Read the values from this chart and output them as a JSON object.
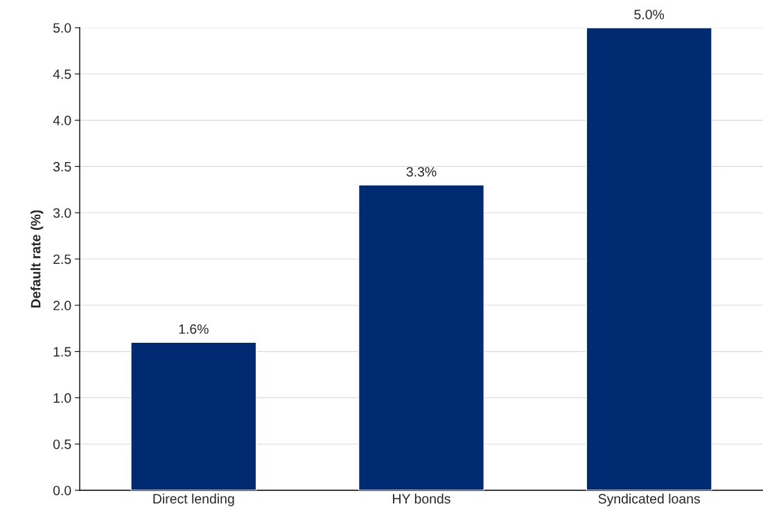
{
  "chart_data": {
    "type": "bar",
    "ylabel": "Default rate (%)",
    "categories": [
      "Direct lending",
      "HY bonds",
      "Syndicated loans"
    ],
    "values": [
      1.6,
      3.3,
      5.0
    ],
    "color": "#002b73",
    "value_labels": [
      "1.6%",
      "3.3%",
      "5.0%"
    ],
    "ylim": [
      0,
      5
    ],
    "yticks": [
      {
        "value": 0,
        "label": "0.0"
      },
      {
        "value": 0.5,
        "label": "0.5"
      },
      {
        "value": 1,
        "label": "1.0"
      },
      {
        "value": 1.5,
        "label": "1.5"
      },
      {
        "value": 2,
        "label": "2.0"
      },
      {
        "value": 2.5,
        "label": "2.5"
      },
      {
        "value": 3,
        "label": "3.0"
      },
      {
        "value": 3.5,
        "label": "3.5"
      },
      {
        "value": 4,
        "label": "4.0"
      },
      {
        "value": 4.5,
        "label": "4.5"
      },
      {
        "value": 5,
        "label": "5.0"
      }
    ],
    "grid": "y"
  }
}
